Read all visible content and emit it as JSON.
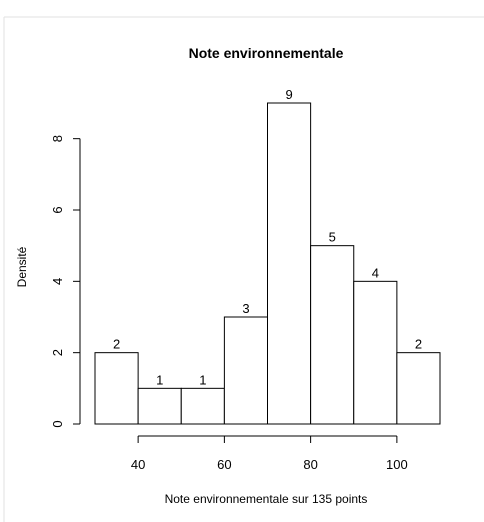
{
  "chart_data": {
    "type": "histogram",
    "title": "Note environnementale",
    "xlabel": "Note environnementale sur 135 points",
    "ylabel": "Densité",
    "bins": [
      {
        "start": 30,
        "end": 40,
        "value": 2,
        "label": "2"
      },
      {
        "start": 40,
        "end": 50,
        "value": 1,
        "label": "1"
      },
      {
        "start": 50,
        "end": 60,
        "value": 1,
        "label": "1"
      },
      {
        "start": 60,
        "end": 70,
        "value": 3,
        "label": "3"
      },
      {
        "start": 70,
        "end": 80,
        "value": 9,
        "label": "9"
      },
      {
        "start": 80,
        "end": 90,
        "value": 5,
        "label": "5"
      },
      {
        "start": 90,
        "end": 100,
        "value": 4,
        "label": "4"
      },
      {
        "start": 100,
        "end": 110,
        "value": 2,
        "label": "2"
      }
    ],
    "x_ticks": [
      40,
      60,
      80,
      100
    ],
    "y_ticks": [
      0,
      2,
      4,
      6,
      8
    ],
    "xlim": [
      30,
      110
    ],
    "ylim": [
      0,
      9
    ],
    "grid": false,
    "colors": {
      "bar_fill": "#ffffff",
      "bar_stroke": "#000000",
      "text": "#000000",
      "frame": "#e0e0e0"
    }
  }
}
